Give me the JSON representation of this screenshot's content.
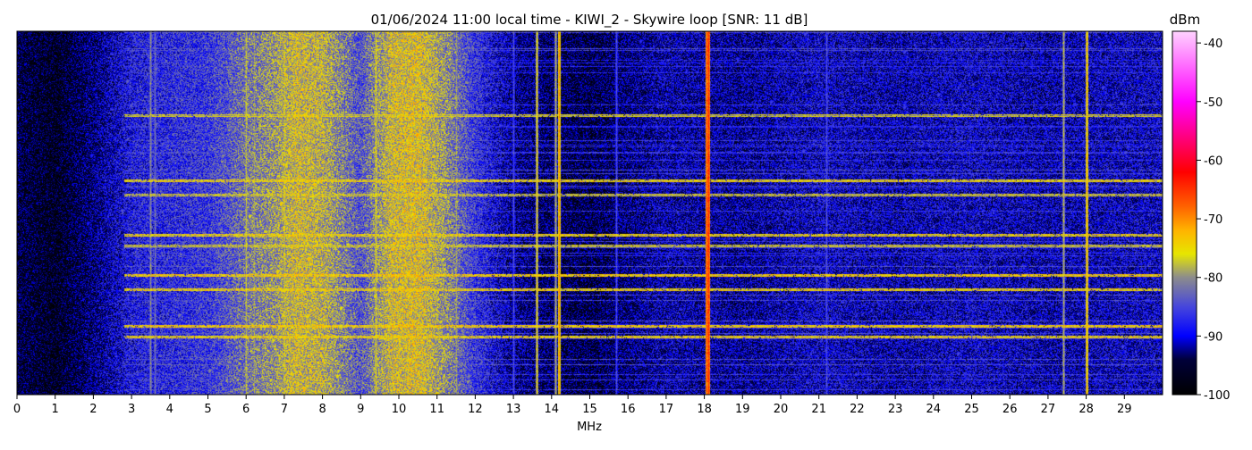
{
  "chart_data": {
    "type": "heatmap",
    "title": "01/06/2024 11:00 local time - KIWI_2 - Skywire loop [SNR: 11 dB]",
    "xlabel": "MHz",
    "x_range_mhz": [
      0,
      30
    ],
    "x_ticks": [
      "0",
      "1",
      "2",
      "3",
      "4",
      "5",
      "6",
      "7",
      "8",
      "9",
      "10",
      "11",
      "12",
      "13",
      "14",
      "15",
      "16",
      "17",
      "18",
      "19",
      "20",
      "21",
      "22",
      "23",
      "24",
      "25",
      "26",
      "27",
      "28",
      "29"
    ],
    "colorbar": {
      "label": "dBm",
      "range": [
        -100,
        -38
      ],
      "ticks": [
        "-40",
        "-50",
        "-60",
        "-70",
        "-80",
        "-90",
        "-100"
      ],
      "tick_values": [
        -40,
        -50,
        -60,
        -70,
        -80,
        -90,
        -100
      ],
      "colormap": [
        {
          "v": -100,
          "color": "#000000"
        },
        {
          "v": -94,
          "color": "#00003a"
        },
        {
          "v": -90,
          "color": "#0000ff"
        },
        {
          "v": -85,
          "color": "#4646dc"
        },
        {
          "v": -80,
          "color": "#8c8c8c"
        },
        {
          "v": -76,
          "color": "#e6e600"
        },
        {
          "v": -72,
          "color": "#ffb400"
        },
        {
          "v": -68,
          "color": "#ff6400"
        },
        {
          "v": -62,
          "color": "#ff0000"
        },
        {
          "v": -50,
          "color": "#ff00ff"
        },
        {
          "v": -38,
          "color": "#ffd2ff"
        }
      ]
    },
    "background_dbm": [
      {
        "mhz": 0,
        "dbm": -95
      },
      {
        "mhz": 1,
        "dbm": -97
      },
      {
        "mhz": 2,
        "dbm": -93
      },
      {
        "mhz": 3,
        "dbm": -88
      },
      {
        "mhz": 4,
        "dbm": -87
      },
      {
        "mhz": 5,
        "dbm": -86
      },
      {
        "mhz": 6,
        "dbm": -82
      },
      {
        "mhz": 6.7,
        "dbm": -80
      },
      {
        "mhz": 7.3,
        "dbm": -77
      },
      {
        "mhz": 8,
        "dbm": -78
      },
      {
        "mhz": 9,
        "dbm": -84
      },
      {
        "mhz": 9.8,
        "dbm": -77
      },
      {
        "mhz": 10.5,
        "dbm": -76
      },
      {
        "mhz": 11.2,
        "dbm": -80
      },
      {
        "mhz": 12,
        "dbm": -86
      },
      {
        "mhz": 13,
        "dbm": -92
      },
      {
        "mhz": 14,
        "dbm": -94
      },
      {
        "mhz": 15,
        "dbm": -95
      },
      {
        "mhz": 16,
        "dbm": -93
      },
      {
        "mhz": 17,
        "dbm": -91
      },
      {
        "mhz": 19,
        "dbm": -92
      },
      {
        "mhz": 21,
        "dbm": -90
      },
      {
        "mhz": 23,
        "dbm": -91
      },
      {
        "mhz": 25,
        "dbm": -90
      },
      {
        "mhz": 27,
        "dbm": -91
      },
      {
        "mhz": 30,
        "dbm": -90
      }
    ],
    "persistent_carriers_mhz": [
      {
        "mhz": 3.5,
        "dbm": -80
      },
      {
        "mhz": 3.6,
        "dbm": -82
      },
      {
        "mhz": 6.0,
        "dbm": -78
      },
      {
        "mhz": 6.2,
        "dbm": -80
      },
      {
        "mhz": 7.0,
        "dbm": -78
      },
      {
        "mhz": 9.4,
        "dbm": -76
      },
      {
        "mhz": 11.5,
        "dbm": -80
      },
      {
        "mhz": 13.0,
        "dbm": -84
      },
      {
        "mhz": 13.6,
        "dbm": -75
      },
      {
        "mhz": 14.1,
        "dbm": -78
      },
      {
        "mhz": 14.2,
        "dbm": -70
      },
      {
        "mhz": 15.7,
        "dbm": -84
      },
      {
        "mhz": 18.05,
        "dbm": -66
      },
      {
        "mhz": 18.1,
        "dbm": -64
      },
      {
        "mhz": 21.2,
        "dbm": -84
      },
      {
        "mhz": 27.4,
        "dbm": -78
      },
      {
        "mhz": 28.0,
        "dbm": -72
      }
    ],
    "horizontal_bursts_rel_time": [
      {
        "t": 0.23,
        "dbm": -80
      },
      {
        "t": 0.41,
        "dbm": -78
      },
      {
        "t": 0.45,
        "dbm": -80
      },
      {
        "t": 0.56,
        "dbm": -78
      },
      {
        "t": 0.59,
        "dbm": -80
      },
      {
        "t": 0.67,
        "dbm": -77
      },
      {
        "t": 0.71,
        "dbm": -78
      },
      {
        "t": 0.81,
        "dbm": -77
      },
      {
        "t": 0.84,
        "dbm": -78
      }
    ]
  }
}
